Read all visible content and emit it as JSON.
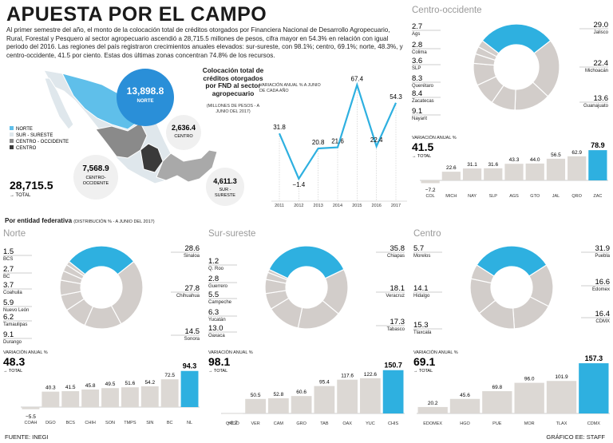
{
  "title": "APUESTA POR EL CAMPO",
  "intro": "Al primer semestre del año, el monto de la colocación total de créditos otorgados por Financiera Nacional de Desarrollo Agropecuario, Rural, Forestal y Pesquero al sector agropecuario ascendió a 28,715.5 millones de pesos, cifra mayor en 54.3% en relación con igual periodo del 2016. Las regiones del país registraron crecimientos anuales elevados: sur-sureste, con 98.1%; centro, 69.1%; norte, 48.3%, y centro-occidente, 41.5 por ciento. Estas dos últimas zonas concentran 74.8% de los recursos.",
  "colors": {
    "accent": "#2eb0e0",
    "donut_gray": "#d2cdca",
    "bar_gray": "#dcd8d4",
    "map_blue": "#5fbfea",
    "map_light": "#dfe7ec",
    "map_mid": "#8a8a8a",
    "map_dark": "#3a3a3a",
    "line_blue": "#2eb0e0"
  },
  "map": {
    "legend": [
      "NORTE",
      "SUR - SURESTE",
      "CENTRO - OCCIDENTE",
      "CENTRO"
    ],
    "total_value": "28,715.5",
    "total_label": "TOTAL",
    "norte_value": "13,898.8",
    "norte_label": "NORTE",
    "co_value": "7,568.9",
    "co_label": "CENTRO-\nOCCIDENTE",
    "centro_value": "2,636.4",
    "centro_label": "CENTRO",
    "ss_value": "4,611.3",
    "ss_label": "SUR -\nSURESTE"
  },
  "fnd": {
    "title": "Colocación total de créditos otorgados por FND al sector agropecuario",
    "unit": "(MILLONES DE PESOS - A JUNIO DEL 2017)",
    "var_label": "VARIACIÓN ANUAL % A JUNIO DE CADA AÑO"
  },
  "entidad": {
    "title": "Por entidad federativa",
    "note": "(DISTRIBUCIÓN % - A JUNIO DEL 2017)"
  },
  "source": "FUENTE: INEGI",
  "credit": "GRÁFICO EE: STAFF",
  "chart_data": [
    {
      "type": "line",
      "name": "fnd-variacion",
      "x": [
        "2011",
        "2012",
        "2013",
        "2014",
        "2015",
        "2016",
        "2017"
      ],
      "values": [
        31.8,
        -1.4,
        20.8,
        21.6,
        67.4,
        22.4,
        54.3
      ],
      "labels": [
        "31.8",
        "−1.4",
        "20.8",
        "21.6",
        "67.4",
        "22.4",
        "54.3"
      ]
    },
    {
      "type": "pie",
      "name": "centro-occidente-donut",
      "title": "Centro-occidente",
      "categories": [
        "Jalisco",
        "Michoacán",
        "Guanajuato",
        "Nayarit",
        "Zacatecas",
        "Querétaro",
        "SLP",
        "Colima",
        "Ags"
      ],
      "values": [
        29.0,
        22.4,
        13.6,
        9.1,
        8.4,
        8.3,
        3.6,
        2.8,
        2.7
      ],
      "value_labels": [
        "29.0",
        "22.4",
        "13.6",
        "9.1",
        "8.4",
        "8.3",
        "3.6",
        "2.8",
        "2.7"
      ]
    },
    {
      "type": "bar",
      "name": "centro-occidente-bars",
      "title": "VARIACIÓN ANUAL %",
      "summary_value": "41.5",
      "summary_label": "TOTAL",
      "categories": [
        "COL",
        "MICH",
        "NAY",
        "SLP",
        "AGS",
        "GTO",
        "JAL",
        "QRO",
        "ZAC"
      ],
      "values": [
        -7.2,
        22.6,
        31.1,
        31.6,
        43.3,
        44.0,
        56.5,
        62.9,
        78.9
      ],
      "value_labels": [
        "−7.2",
        "22.6",
        "31.1",
        "31.6",
        "43.3",
        "44.0",
        "56.5",
        "62.9",
        "78.9"
      ]
    },
    {
      "type": "pie",
      "name": "norte-donut",
      "title": "Norte",
      "categories": [
        "Sinaloa",
        "Chihuahua",
        "Sonora",
        "Durango",
        "Tamaulipas",
        "Nuevo León",
        "Coahuila",
        "BC",
        "BCS"
      ],
      "values": [
        28.6,
        27.8,
        14.5,
        9.1,
        6.2,
        5.9,
        3.7,
        2.7,
        1.5
      ],
      "value_labels": [
        "28.6",
        "27.8",
        "14.5",
        "9.1",
        "6.2",
        "5.9",
        "3.7",
        "2.7",
        "1.5"
      ]
    },
    {
      "type": "bar",
      "name": "norte-bars",
      "title": "VARIACIÓN ANUAL %",
      "summary_value": "48.3",
      "summary_label": "TOTAL",
      "categories": [
        "COAH",
        "DGO",
        "BCS",
        "CHIH",
        "SON",
        "TMPS",
        "SIN",
        "BC",
        "NL"
      ],
      "values": [
        -5.5,
        40.3,
        41.5,
        45.8,
        49.5,
        51.6,
        54.2,
        72.5,
        94.3
      ],
      "value_labels": [
        "−5.5",
        "40.3",
        "41.5",
        "45.8",
        "49.5",
        "51.6",
        "54.2",
        "72.5",
        "94.3"
      ]
    },
    {
      "type": "pie",
      "name": "sur-sureste-donut",
      "title": "Sur-sureste",
      "categories": [
        "Chiapas",
        "Veracruz",
        "Tabasco",
        "Oaxaca",
        "Yucatán",
        "Campeche",
        "Guerrero",
        "Q. Roo"
      ],
      "values": [
        35.8,
        18.1,
        17.3,
        13.0,
        6.3,
        5.5,
        2.8,
        1.2
      ],
      "value_labels": [
        "35.8",
        "18.1",
        "17.3",
        "13.0",
        "6.3",
        "5.5",
        "2.8",
        "1.2"
      ]
    },
    {
      "type": "bar",
      "name": "sur-sureste-bars",
      "title": "VARIACIÓN ANUAL %",
      "summary_value": "98.1",
      "summary_label": "TOTAL",
      "categories": [
        "QROO",
        "VER",
        "CAM",
        "GRO",
        "TAB",
        "OAX",
        "YUC",
        "CHIS"
      ],
      "values": [
        -0.7,
        50.5,
        52.8,
        60.6,
        95.4,
        117.6,
        122.6,
        150.7
      ],
      "value_labels": [
        "−0.7",
        "50.5",
        "52.8",
        "60.6",
        "95.4",
        "117.6",
        "122.6",
        "150.7"
      ]
    },
    {
      "type": "pie",
      "name": "centro-donut",
      "title": "Centro",
      "categories": [
        "Puebla",
        "Edomex",
        "CDMX",
        "Tlaxcala",
        "Hidalgo",
        "Morelos"
      ],
      "values": [
        31.9,
        16.6,
        16.4,
        15.3,
        14.1,
        5.7
      ],
      "value_labels": [
        "31.9",
        "16.6",
        "16.4",
        "15.3",
        "14.1",
        "5.7"
      ]
    },
    {
      "type": "bar",
      "name": "centro-bars",
      "title": "VARIACIÓN ANUAL %",
      "summary_value": "69.1",
      "summary_label": "TOTAL",
      "categories": [
        "EDOMEX",
        "HGO",
        "PUE",
        "MOR",
        "TLAX",
        "CDMX"
      ],
      "values": [
        20.2,
        45.6,
        69.8,
        96.0,
        101.9,
        157.3
      ],
      "value_labels": [
        "20.2",
        "45.6",
        "69.8",
        "96.0",
        "101.9",
        "157.3"
      ]
    }
  ]
}
